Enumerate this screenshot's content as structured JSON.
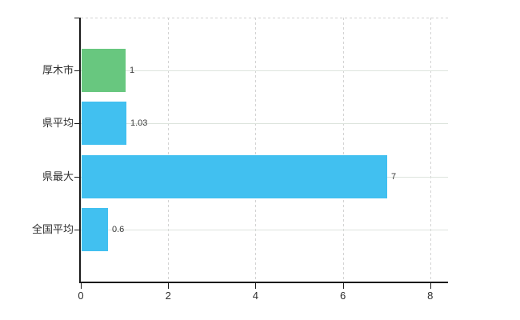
{
  "chart_data": {
    "type": "bar",
    "orientation": "horizontal",
    "title": "",
    "xlabel": "",
    "ylabel": "",
    "categories": [
      "厚木市",
      "県平均",
      "県最大",
      "全国平均"
    ],
    "values": [
      1,
      1.03,
      7,
      0.6
    ],
    "value_labels": [
      "1",
      "1.03",
      "7",
      "0.6"
    ],
    "bar_colors": [
      "#68c77f",
      "#41c0f0",
      "#41c0f0",
      "#41c0f0"
    ],
    "xlim": [
      0,
      8
    ],
    "x_ticks": [
      0,
      2,
      4,
      6,
      8
    ],
    "x_tick_labels": [
      "0",
      "2",
      "4",
      "6",
      "8"
    ],
    "legend": null,
    "grid": {
      "vertical_style": "dashed",
      "horizontal_style": "solid",
      "horizontal_color": "#dde4dd",
      "vertical_color": "#d2d2d2",
      "top_border_style": "dashed"
    },
    "colors": {
      "background": "#ffffff",
      "axis": "#1a1a1a",
      "text": "#2f2f2f",
      "value_text": "#3c3c3c",
      "bar_green": "#68c77f",
      "bar_blue": "#41c0f0"
    }
  }
}
